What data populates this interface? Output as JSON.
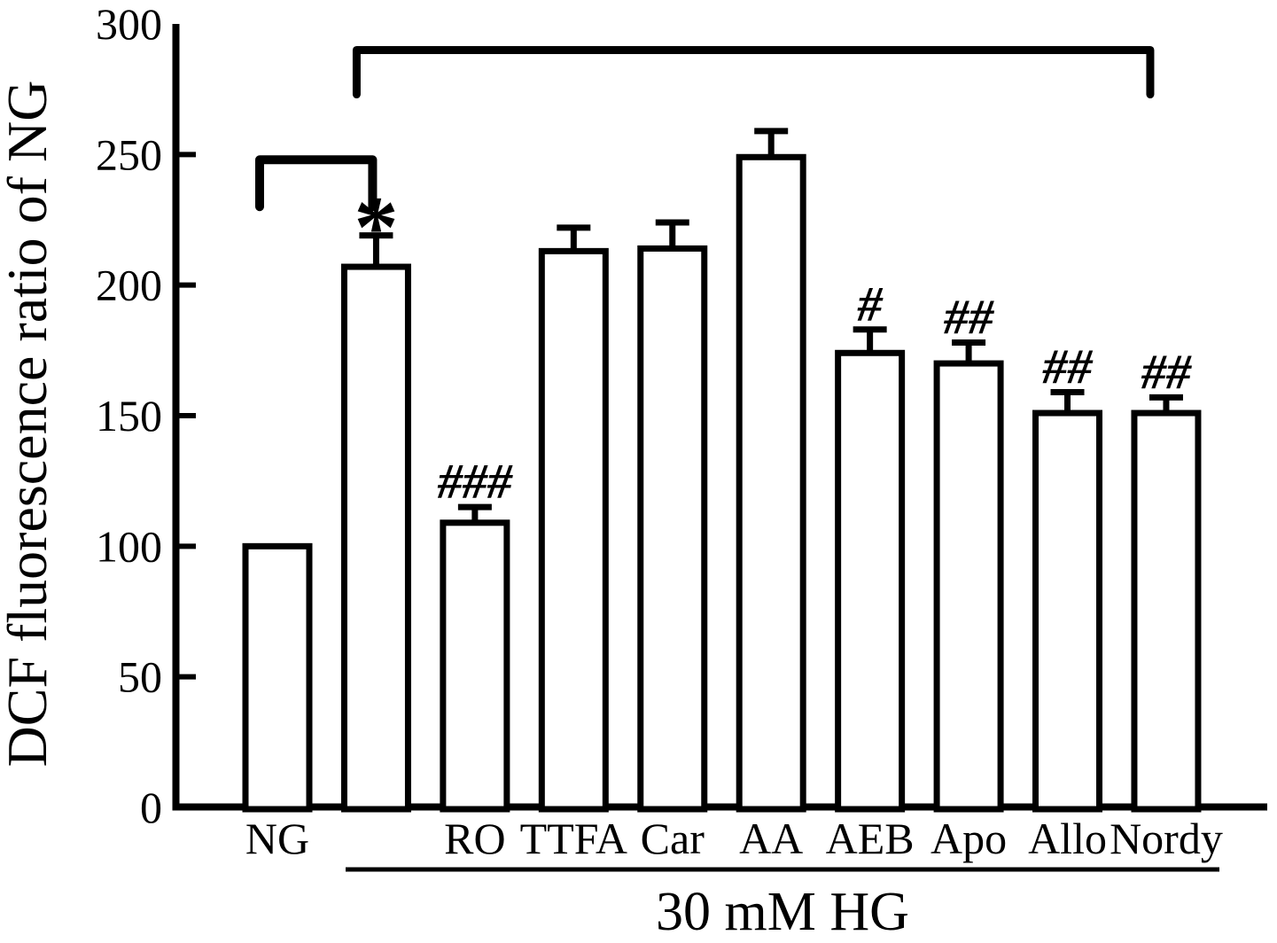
{
  "figure": {
    "background": "#ffffff",
    "foreground": "#000000"
  },
  "chart_data": {
    "type": "bar",
    "title": "",
    "xlabel": "",
    "ylabel": "DCF fluorescence ratio of NG",
    "ylim": [
      0,
      300
    ],
    "yticks": [
      0,
      50,
      100,
      150,
      200,
      250,
      300
    ],
    "grid": false,
    "legend": null,
    "categories": [
      "NG",
      "",
      "RO",
      "TTFA",
      "Car",
      "AA",
      "AEB",
      "Apo",
      "Allo",
      "Nordy"
    ],
    "series_name": "DCF fluorescence ratio (% of NG)",
    "values": [
      100,
      207,
      109,
      213,
      214,
      249,
      174,
      170,
      151,
      151
    ],
    "errors": [
      0,
      12,
      6,
      9,
      10,
      10,
      9,
      8,
      8,
      6
    ],
    "significance": [
      "",
      "*",
      "###",
      "",
      "",
      "",
      "#",
      "##",
      "##",
      "##"
    ],
    "bar_fill": "#ffffff",
    "bar_stroke": "#000000",
    "group_label": "30 mM HG",
    "group_span_indices": [
      1,
      9
    ],
    "brackets": [
      {
        "from_index": 0,
        "to_index": 1,
        "top_value": 248,
        "leg_value": 230
      },
      {
        "from_index": 1,
        "to_index": 9,
        "top_value": 290,
        "leg_value": 273
      }
    ]
  }
}
